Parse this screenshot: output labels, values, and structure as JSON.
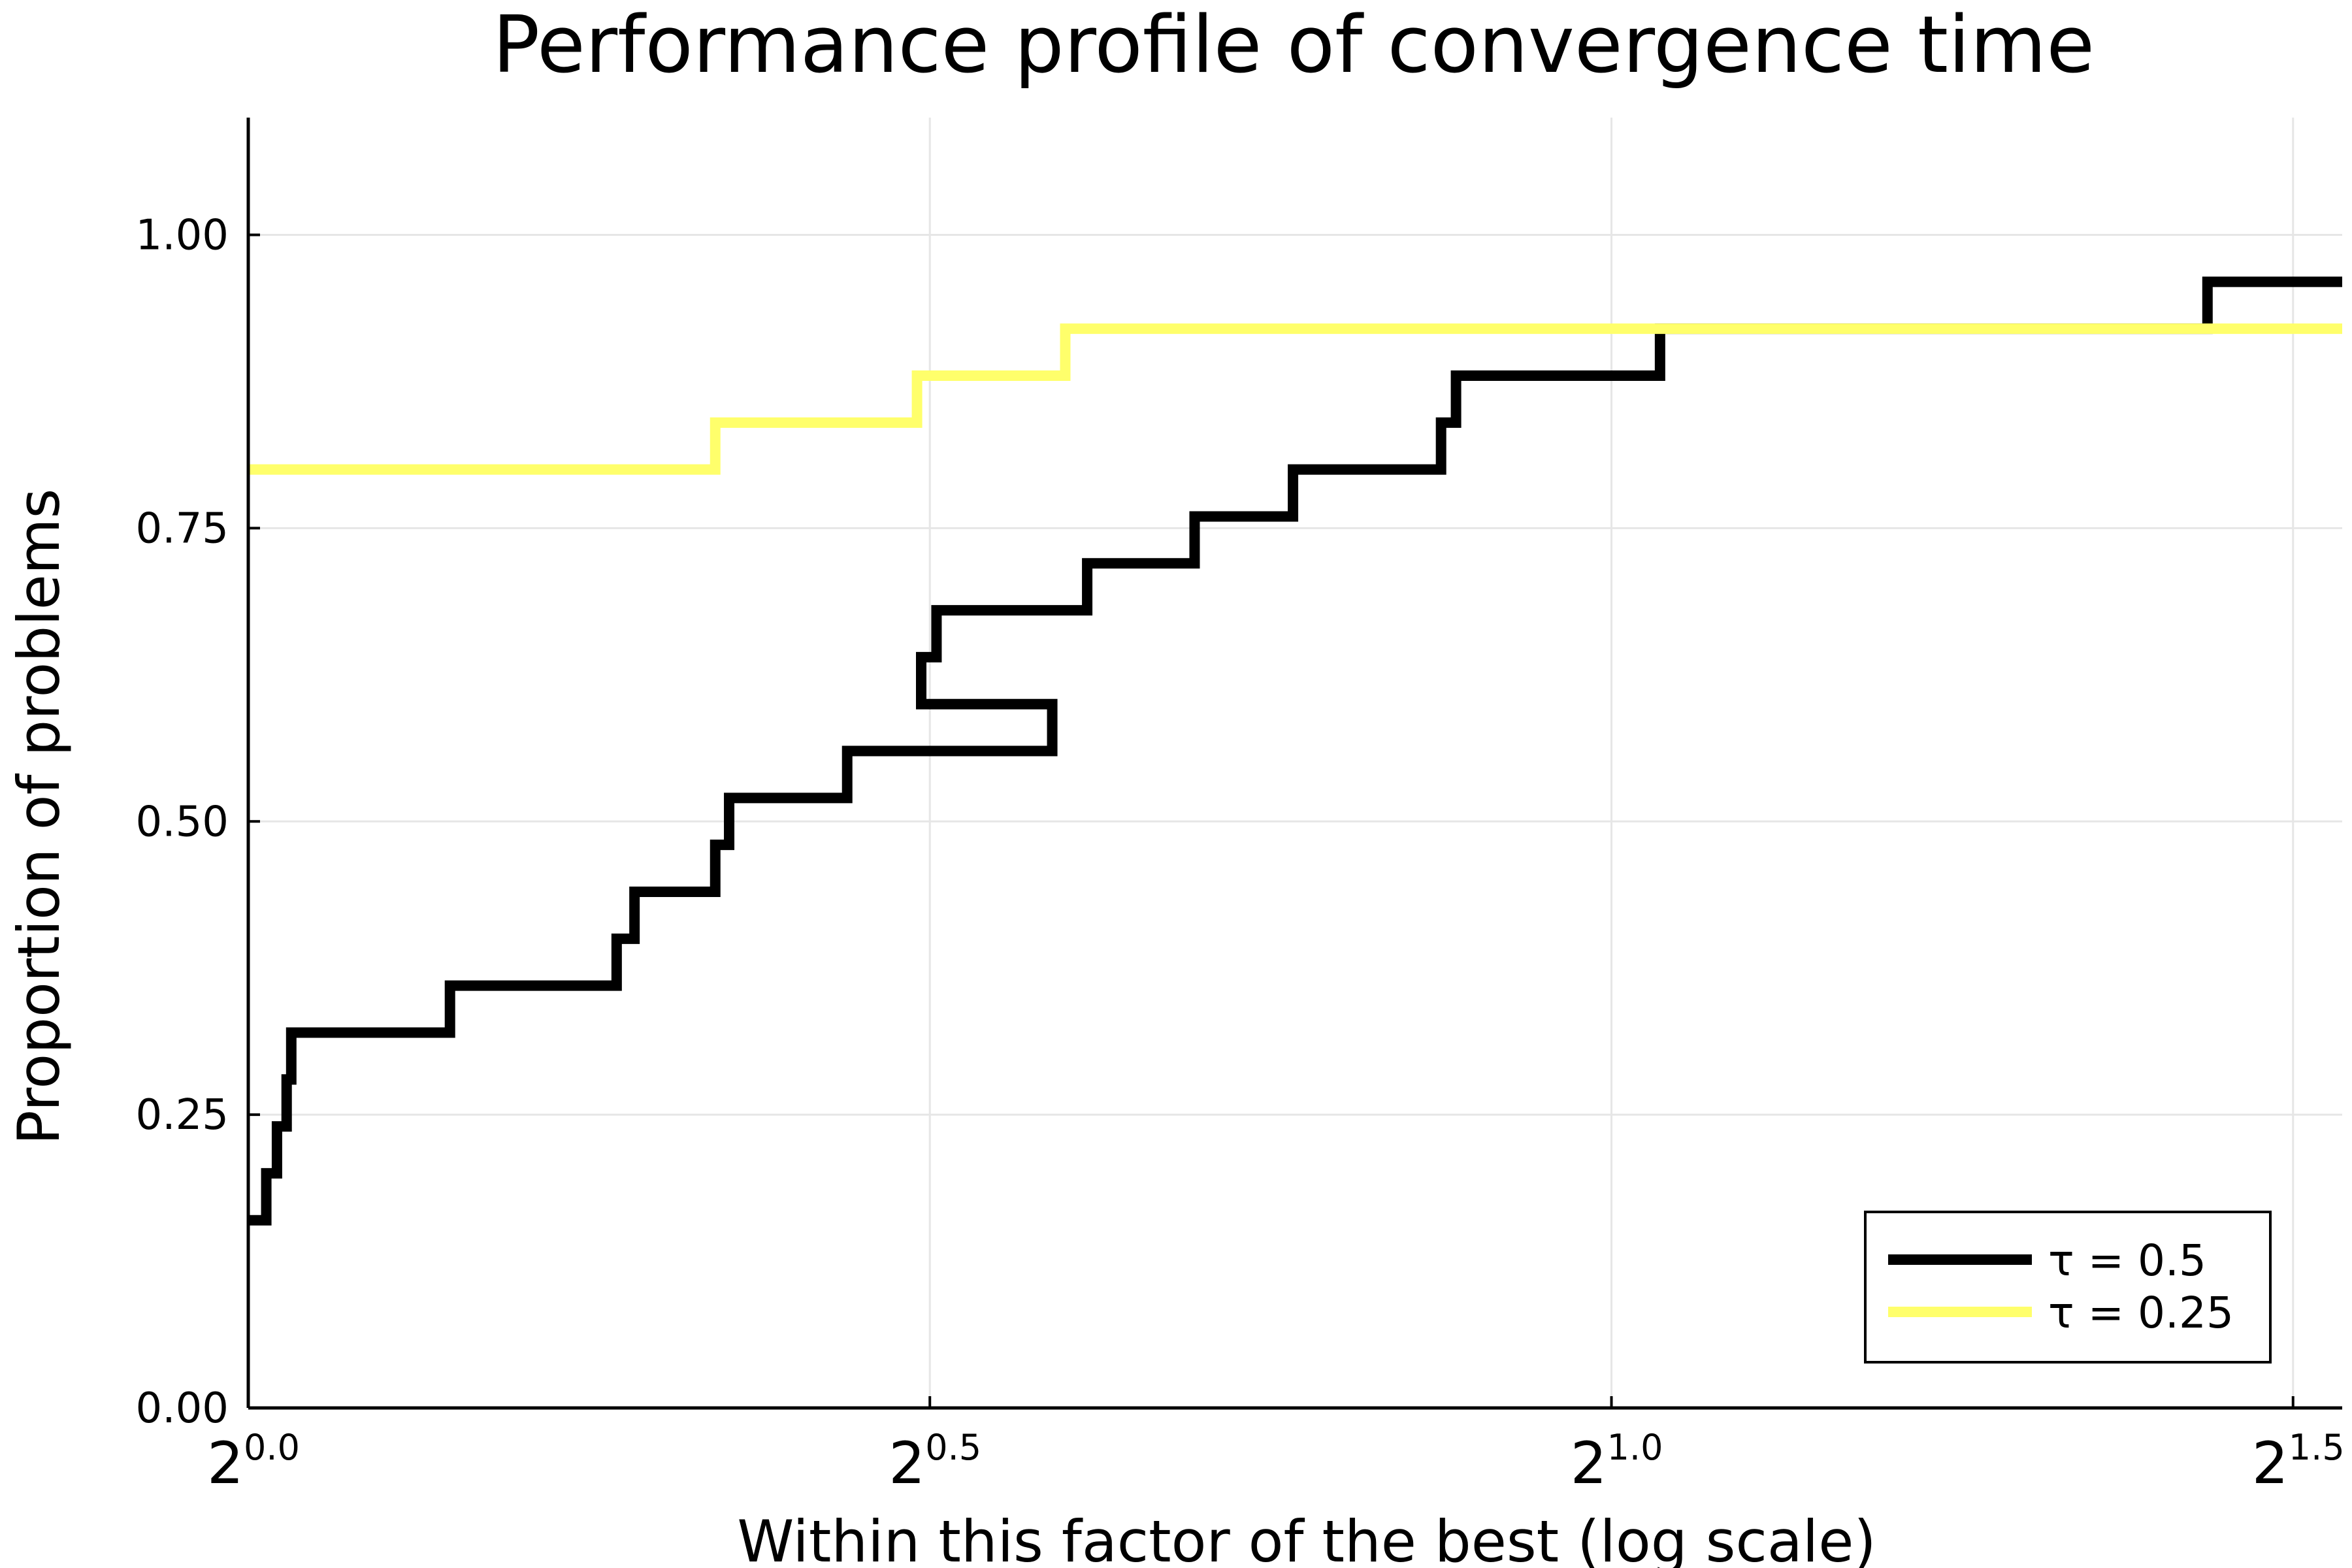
{
  "chart_data": {
    "type": "line",
    "step": true,
    "title": "Performance profile of convergence time",
    "xlabel": "Within this factor of the best (log scale)",
    "ylabel": "Proportion of problems",
    "x_scale": "log2",
    "xlim": [
      1.0,
      2.9
    ],
    "ylim": [
      0.0,
      1.1
    ],
    "x_ticks": [
      {
        "value": 1.0,
        "base": "2",
        "exp": "0.0"
      },
      {
        "value": 1.4142,
        "base": "2",
        "exp": "0.5"
      },
      {
        "value": 2.0,
        "base": "2",
        "exp": "1.0"
      },
      {
        "value": 2.8284,
        "base": "2",
        "exp": "1.5"
      }
    ],
    "y_ticks": [
      {
        "value": 0.0,
        "label": "0.00"
      },
      {
        "value": 0.25,
        "label": "0.25"
      },
      {
        "value": 0.5,
        "label": "0.50"
      },
      {
        "value": 0.75,
        "label": "0.75"
      },
      {
        "value": 1.0,
        "label": "1.00"
      }
    ],
    "grid": true,
    "legend_position": "bottom-right",
    "series": [
      {
        "name": "τ = 0.5",
        "color": "#000000",
        "x": [
          1.0,
          1.0092,
          1.0147,
          1.0197,
          1.0221,
          1.108,
          1.206,
          1.217,
          1.268,
          1.277,
          1.356,
          1.505,
          1.408,
          1.419,
          1.532,
          1.618,
          1.701,
          1.834,
          1.848,
          2.05,
          2.708,
          2.9
        ],
        "y": [
          0.16,
          0.2,
          0.24,
          0.28,
          0.32,
          0.36,
          0.4,
          0.44,
          0.48,
          0.52,
          0.56,
          0.6,
          0.64,
          0.68,
          0.72,
          0.76,
          0.8,
          0.84,
          0.88,
          0.92,
          0.96,
          0.96
        ]
      },
      {
        "name": "τ = 0.25",
        "color": "#ffff6b",
        "x": [
          1.0,
          1.268,
          1.405,
          1.515,
          2.9
        ],
        "y": [
          0.8,
          0.84,
          0.88,
          0.92,
          0.92
        ]
      }
    ]
  }
}
